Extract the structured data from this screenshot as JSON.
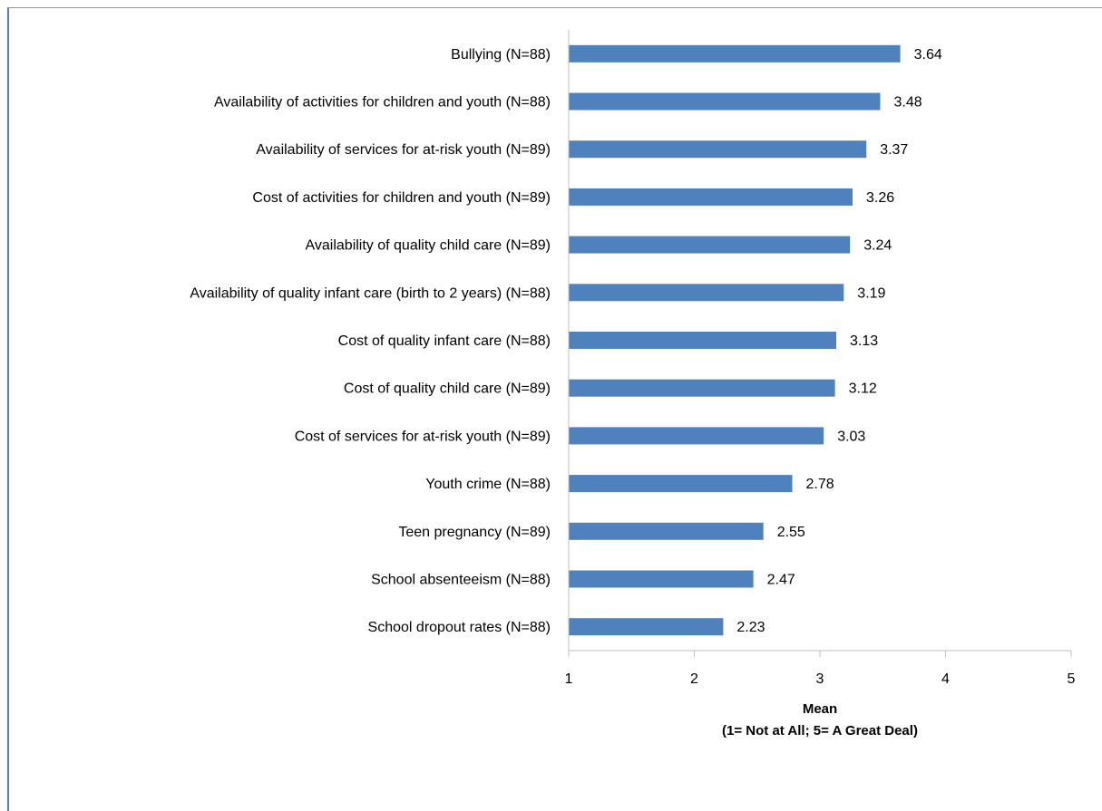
{
  "colors": {
    "bar": "#4f81bd",
    "axis": "#bfbfbf"
  },
  "chart_data": {
    "type": "bar",
    "orientation": "horizontal",
    "categories": [
      "Bullying (N=88)",
      "Availability of activities for children and youth (N=88)",
      "Availability of services for at-risk youth (N=89)",
      "Cost of activities for children and youth (N=89)",
      "Availability of quality child care (N=89)",
      "Availability of quality infant care (birth to 2 years) (N=88)",
      "Cost of quality infant care (N=88)",
      "Cost of quality child care (N=89)",
      "Cost of services for at-risk youth (N=89)",
      "Youth crime (N=88)",
      "Teen pregnancy (N=89)",
      "School absenteeism (N=88)",
      "School dropout rates (N=88)"
    ],
    "values": [
      3.64,
      3.48,
      3.37,
      3.26,
      3.24,
      3.19,
      3.13,
      3.12,
      3.03,
      2.78,
      2.55,
      2.47,
      2.23
    ],
    "value_labels": [
      "3.64",
      "3.48",
      "3.37",
      "3.26",
      "3.24",
      "3.19",
      "3.13",
      "3.12",
      "3.03",
      "2.78",
      "2.55",
      "2.47",
      "2.23"
    ],
    "xlim": [
      1,
      5
    ],
    "xticks": [
      "1",
      "2",
      "3",
      "4",
      "5"
    ],
    "xlabel_line1": "Mean",
    "xlabel_line2": "(1= Not at All; 5= A Great Deal)",
    "grid": false,
    "legend": "none"
  }
}
